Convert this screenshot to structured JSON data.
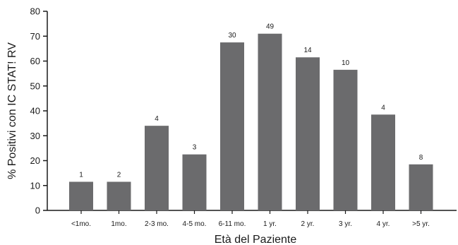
{
  "chart_data": {
    "type": "bar",
    "title": "",
    "xlabel": "Età del Paziente",
    "ylabel": "% Positivi con IC STAT! RV",
    "ylim": [
      0,
      80
    ],
    "yticks": [
      0,
      10,
      20,
      30,
      40,
      50,
      60,
      70,
      80
    ],
    "grid": false,
    "bar_color": "#6b6b6d",
    "categories": [
      "<1mo.",
      "1mo.",
      "2-3 mo.",
      "4-5 mo.",
      "6-11 mo.",
      "1 yr.",
      "2 yr.",
      "3 yr.",
      "4 yr.",
      ">5 yr."
    ],
    "values": [
      11.5,
      11.5,
      34,
      22.5,
      67.5,
      71,
      61.5,
      56.5,
      38.5,
      18.5
    ],
    "data_labels": [
      "1",
      "2",
      "4",
      "3",
      "30",
      "49",
      "14",
      "10",
      "4",
      "8"
    ]
  }
}
